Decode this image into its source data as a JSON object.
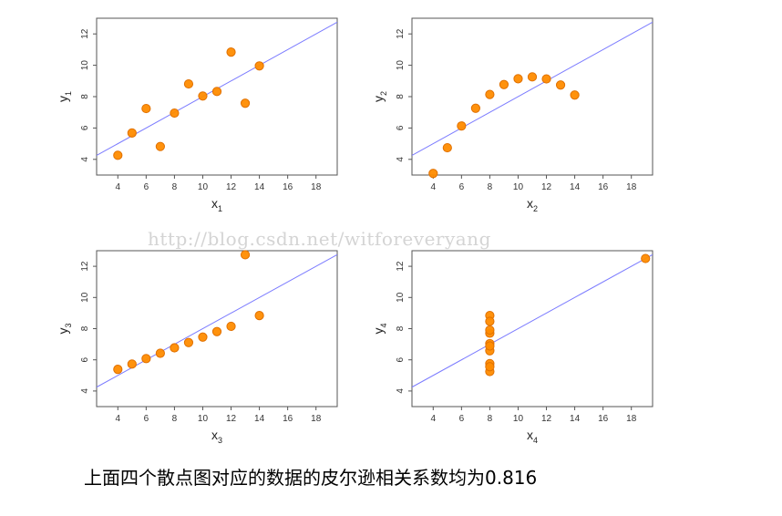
{
  "watermark": "http://blog.csdn.net/witforeveryang",
  "caption": "上面四个散点图对应的数据的皮尔逊相关系数均为0.816",
  "colors": {
    "point_fill": "#ff8c00",
    "point_stroke": "#e07000",
    "line": "#7b7bff",
    "frame": "#555555"
  },
  "chart_data": [
    {
      "type": "scatter",
      "xlabel": "x",
      "xlabel_sub": "1",
      "ylabel": "y",
      "ylabel_sub": "1",
      "xlim": [
        2.5,
        19.5
      ],
      "ylim": [
        3,
        13
      ],
      "xticks": [
        4,
        6,
        8,
        10,
        12,
        14,
        16,
        18
      ],
      "yticks": [
        4,
        6,
        8,
        10,
        12
      ],
      "x": [
        10,
        8,
        13,
        9,
        11,
        14,
        6,
        4,
        12,
        7,
        5
      ],
      "y": [
        8.04,
        6.95,
        7.58,
        8.81,
        8.33,
        9.96,
        7.24,
        4.26,
        10.84,
        4.82,
        5.68
      ],
      "fit_line": {
        "intercept": 3.0,
        "slope": 0.5
      }
    },
    {
      "type": "scatter",
      "xlabel": "x",
      "xlabel_sub": "2",
      "ylabel": "y",
      "ylabel_sub": "2",
      "xlim": [
        2.5,
        19.5
      ],
      "ylim": [
        3,
        13
      ],
      "xticks": [
        4,
        6,
        8,
        10,
        12,
        14,
        16,
        18
      ],
      "yticks": [
        4,
        6,
        8,
        10,
        12
      ],
      "x": [
        10,
        8,
        13,
        9,
        11,
        14,
        6,
        4,
        12,
        7,
        5
      ],
      "y": [
        9.14,
        8.14,
        8.74,
        8.77,
        9.26,
        8.1,
        6.13,
        3.1,
        9.13,
        7.26,
        4.74
      ],
      "fit_line": {
        "intercept": 3.0,
        "slope": 0.5
      }
    },
    {
      "type": "scatter",
      "xlabel": "x",
      "xlabel_sub": "3",
      "ylabel": "y",
      "ylabel_sub": "3",
      "xlim": [
        2.5,
        19.5
      ],
      "ylim": [
        3,
        13
      ],
      "xticks": [
        4,
        6,
        8,
        10,
        12,
        14,
        16,
        18
      ],
      "yticks": [
        4,
        6,
        8,
        10,
        12
      ],
      "x": [
        10,
        8,
        13,
        9,
        11,
        14,
        6,
        4,
        12,
        7,
        5
      ],
      "y": [
        7.46,
        6.77,
        12.74,
        7.11,
        7.81,
        8.84,
        6.08,
        5.39,
        8.15,
        6.42,
        5.73
      ],
      "fit_line": {
        "intercept": 3.0,
        "slope": 0.5
      }
    },
    {
      "type": "scatter",
      "xlabel": "x",
      "xlabel_sub": "4",
      "ylabel": "y",
      "ylabel_sub": "4",
      "xlim": [
        2.5,
        19.5
      ],
      "ylim": [
        3,
        13
      ],
      "xticks": [
        4,
        6,
        8,
        10,
        12,
        14,
        16,
        18
      ],
      "yticks": [
        4,
        6,
        8,
        10,
        12
      ],
      "x": [
        8,
        8,
        8,
        8,
        8,
        8,
        8,
        19,
        8,
        8,
        8
      ],
      "y": [
        6.58,
        5.76,
        7.71,
        8.84,
        8.47,
        7.04,
        5.25,
        12.5,
        5.56,
        7.91,
        6.89
      ],
      "fit_line": {
        "intercept": 3.0,
        "slope": 0.5
      }
    }
  ]
}
